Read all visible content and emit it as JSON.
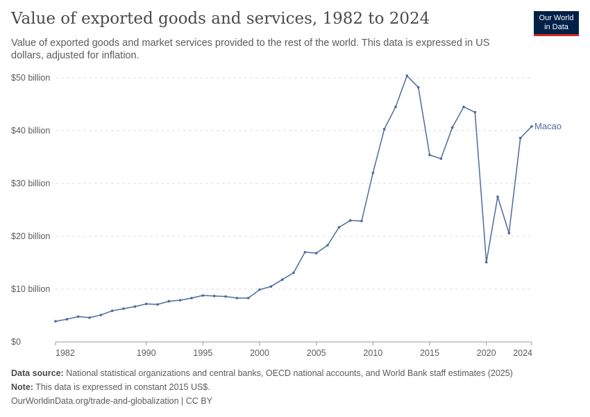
{
  "header": {
    "title": "Value of exported goods and services, 1982 to 2024",
    "subtitle": "Value of exported goods and market services provided to the rest of the world. This data is expressed in US dollars, adjusted for inflation."
  },
  "logo": {
    "line1": "Our World",
    "line2": "in Data"
  },
  "footer": {
    "source_label": "Data source:",
    "source_text": "National statistical organizations and central banks, OECD national accounts, and World Bank staff estimates (2025)",
    "note_label": "Note:",
    "note_text": "This data is expressed in constant 2015 US$.",
    "link": "OurWorldinData.org/trade-and-globalization | CC BY"
  },
  "colors": {
    "series": "#4c6a9c",
    "grid": "#dddddd",
    "axis": "#999999"
  },
  "chart_data": {
    "type": "line",
    "title": "Value of exported goods and services, 1982 to 2024",
    "xlabel": "",
    "ylabel": "",
    "xlim": [
      1982,
      2024
    ],
    "ylim": [
      0,
      50
    ],
    "y_unit": "billion US$",
    "y_ticks": [
      0,
      10,
      20,
      30,
      40,
      50
    ],
    "y_tick_labels": [
      "$0",
      "$10 billion",
      "$20 billion",
      "$30 billion",
      "$40 billion",
      "$50 billion"
    ],
    "x_ticks": [
      1982,
      1990,
      1995,
      2000,
      2005,
      2010,
      2015,
      2020,
      2024
    ],
    "x_tick_labels": [
      "1982",
      "1990",
      "1995",
      "2000",
      "2005",
      "2010",
      "2015",
      "2020",
      "2024"
    ],
    "grid": "horizontal dashed",
    "series": [
      {
        "name": "Macao",
        "x": [
          1982,
          1983,
          1984,
          1985,
          1986,
          1987,
          1988,
          1989,
          1990,
          1991,
          1992,
          1993,
          1994,
          1995,
          1996,
          1997,
          1998,
          1999,
          2000,
          2001,
          2002,
          2003,
          2004,
          2005,
          2006,
          2007,
          2008,
          2009,
          2010,
          2011,
          2012,
          2013,
          2014,
          2015,
          2016,
          2017,
          2018,
          2019,
          2020,
          2021,
          2022,
          2023,
          2024
        ],
        "y": [
          3.9,
          4.3,
          4.8,
          4.6,
          5.1,
          5.9,
          6.3,
          6.7,
          7.2,
          7.1,
          7.7,
          7.9,
          8.3,
          8.8,
          8.7,
          8.6,
          8.3,
          8.3,
          9.9,
          10.5,
          11.8,
          13.1,
          17.0,
          16.8,
          18.3,
          21.7,
          23.0,
          22.9,
          32.0,
          40.3,
          44.5,
          50.4,
          48.2,
          35.4,
          34.7,
          40.6,
          44.5,
          43.5,
          15.1,
          27.5,
          20.6,
          38.6,
          40.8
        ]
      }
    ]
  }
}
